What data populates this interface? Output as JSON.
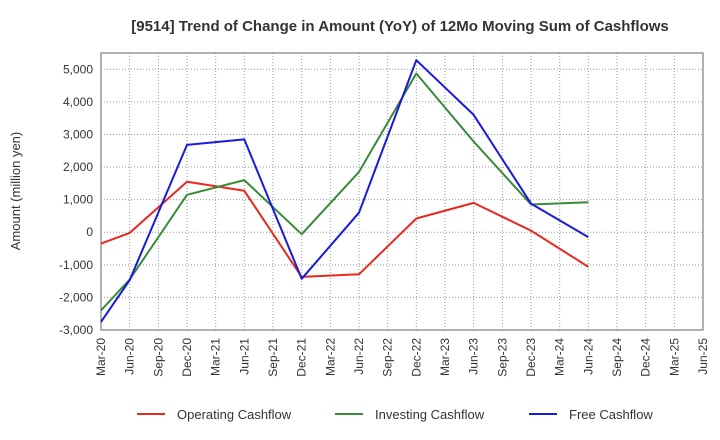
{
  "chart_data": {
    "type": "line",
    "title": "[9514]  Trend of Change in Amount (YoY) of 12Mo Moving Sum of Cashflows",
    "xlabel": "",
    "ylabel": "Amount (million yen)",
    "ylim": [
      -3000,
      5500
    ],
    "yticks": [
      -3000,
      -2000,
      -1000,
      0,
      1000,
      2000,
      3000,
      4000,
      5000
    ],
    "ytick_labels": [
      "-3,000",
      "-2,000",
      "-1,000",
      "0",
      "1,000",
      "2,000",
      "3,000",
      "4,000",
      "5,000"
    ],
    "categories": [
      "Mar-20",
      "Jun-20",
      "Sep-20",
      "Dec-20",
      "Mar-21",
      "Jun-21",
      "Sep-21",
      "Dec-21",
      "Mar-22",
      "Jun-22",
      "Sep-22",
      "Dec-22",
      "Mar-23",
      "Jun-23",
      "Sep-23",
      "Dec-23",
      "Mar-24",
      "Jun-24",
      "Sep-24",
      "Dec-24",
      "Mar-25",
      "Jun-25"
    ],
    "grid": true,
    "legend_position": "bottom",
    "series": [
      {
        "name": "Operating Cashflow",
        "color": "#e8281e",
        "values": [
          -350,
          -20,
          null,
          1550,
          null,
          1270,
          null,
          -1370,
          null,
          -1290,
          null,
          420,
          null,
          900,
          null,
          50,
          null,
          -1060,
          null,
          null,
          null,
          null
        ]
      },
      {
        "name": "Investing Cashflow",
        "color": "#3a8a3a",
        "values": [
          -2400,
          -1450,
          null,
          1150,
          null,
          1600,
          null,
          -60,
          null,
          1850,
          null,
          4870,
          null,
          2780,
          null,
          850,
          null,
          920,
          null,
          null,
          null,
          null
        ]
      },
      {
        "name": "Free Cashflow",
        "color": "#1a1adc",
        "values": [
          -2750,
          -1470,
          null,
          2680,
          null,
          2850,
          null,
          -1430,
          null,
          600,
          null,
          5280,
          null,
          3600,
          null,
          880,
          null,
          -150,
          null,
          null,
          null,
          null
        ]
      }
    ]
  }
}
